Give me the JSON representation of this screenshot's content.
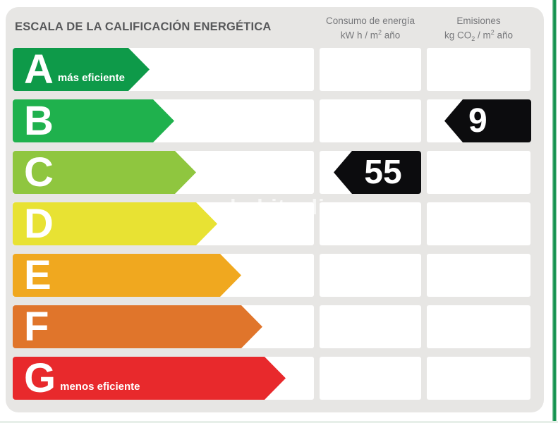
{
  "title": "ESCALA DE LA CALIFICACIÓN ENERGÉTICA",
  "watermark": "habitaclia",
  "columns": {
    "consumo": {
      "title": "Consumo de energía",
      "unit": {
        "pre": "kW h  / m",
        "sup": "2",
        "post": " año"
      }
    },
    "emisiones": {
      "title": "Emisiones",
      "unit": {
        "pre": "kg CO",
        "sub": "2",
        "mid": " / m",
        "sup": "2",
        "post": " año"
      }
    }
  },
  "scale": {
    "rows": [
      {
        "grade": "A",
        "note": "más eficiente",
        "color": "#0e9a49",
        "arrow_width": 194
      },
      {
        "grade": "B",
        "note": "",
        "color": "#1fb14d",
        "arrow_width": 229
      },
      {
        "grade": "C",
        "note": "",
        "color": "#8fc63f",
        "arrow_width": 260
      },
      {
        "grade": "D",
        "note": "",
        "color": "#e8e233",
        "arrow_width": 290
      },
      {
        "grade": "E",
        "note": "",
        "color": "#f0a81f",
        "arrow_width": 324
      },
      {
        "grade": "F",
        "note": "",
        "color": "#e0752b",
        "arrow_width": 354
      },
      {
        "grade": "G",
        "note": "menos eficiente",
        "color": "#e8292c",
        "arrow_width": 387
      }
    ]
  },
  "values": {
    "consumo": {
      "value": "55",
      "rating": "C",
      "row_index": 2
    },
    "emisiones": {
      "value": "9",
      "rating": "B",
      "row_index": 1
    }
  },
  "chart_data": {
    "type": "bar",
    "title": "ESCALA DE LA CALIFICACIÓN ENERGÉTICA",
    "categories": [
      "A",
      "B",
      "C",
      "D",
      "E",
      "F",
      "G"
    ],
    "category_notes": {
      "A": "más eficiente",
      "G": "menos eficiente"
    },
    "bar_colors": [
      "#0e9a49",
      "#1fb14d",
      "#8fc63f",
      "#e8e233",
      "#f0a81f",
      "#e0752b",
      "#e8292c"
    ],
    "series": [
      {
        "name": "Consumo de energía (kW h / m2 año)",
        "value": 55,
        "rating": "C"
      },
      {
        "name": "Emisiones (kg CO2 / m2 año)",
        "value": 9,
        "rating": "B"
      }
    ],
    "legend": "none",
    "orientation": "horizontal"
  },
  "colors": {
    "panel_bg": "#e7e6e4",
    "cell_bg": "#ffffff",
    "value_arrow_bg": "#0c0c0e",
    "title_text": "#57585a",
    "header_text": "#77787b",
    "border_accent": "#12914e"
  }
}
